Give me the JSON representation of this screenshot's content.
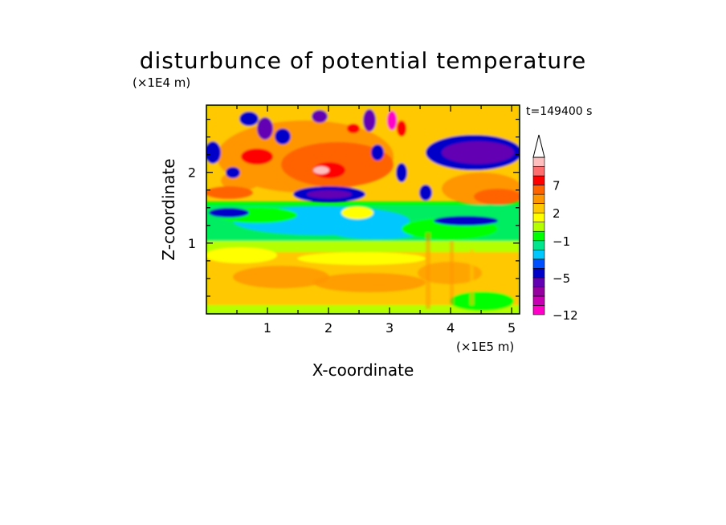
{
  "chart_data": {
    "type": "heatmap",
    "title": "disturbunce of potential temperature",
    "xlabel": "X-coordinate",
    "ylabel": "Z-coordinate",
    "x_unit": "(×1E5 m)",
    "y_unit": "(×1E4 m)",
    "time_label": "t=149400 s",
    "xlim": [
      0,
      5.13
    ],
    "ylim": [
      0,
      2.95
    ],
    "x_ticks": [
      "1",
      "2",
      "3",
      "4",
      "5"
    ],
    "y_ticks": [
      "1",
      "2"
    ],
    "colorbar": {
      "tick_labels": [
        "7",
        "2",
        "−1",
        "−5",
        "−12"
      ],
      "colors": [
        "#ff00c8",
        "#c800b4",
        "#9600a0",
        "#6400b4",
        "#0000c8",
        "#0050ff",
        "#00c8ff",
        "#00e68c",
        "#00ff00",
        "#b4ff00",
        "#ffff00",
        "#ffc800",
        "#ff9600",
        "#ff6400",
        "#ff0000",
        "#ff6e6e",
        "#ffbebe"
      ],
      "extend_top": true
    },
    "regions": [
      {
        "x": [
          0.0,
          5.13
        ],
        "z": [
          0.0,
          0.9
        ],
        "value": "warm-lower",
        "color": "#ffc800"
      },
      {
        "x": [
          0.0,
          3.6
        ],
        "z": [
          0.9,
          1.6
        ],
        "value": "neutral",
        "color": "#00ff00"
      },
      {
        "x": [
          0.9,
          2.9
        ],
        "z": [
          1.0,
          1.5
        ],
        "value": "cool",
        "color": "#00c8ff"
      },
      {
        "x": [
          0.3,
          3.3
        ],
        "z": [
          1.9,
          2.6
        ],
        "value": "warm-upper",
        "color": "#ff6400"
      },
      {
        "x": [
          1.5,
          2.5
        ],
        "z": [
          1.6,
          1.8
        ],
        "value": "cold-band",
        "color": "#0000c8"
      },
      {
        "x": [
          3.6,
          5.13
        ],
        "z": [
          2.1,
          2.6
        ],
        "value": "cold-upper",
        "color": "#6400b4"
      },
      {
        "x": [
          3.4,
          4.9
        ],
        "z": [
          1.3,
          1.45
        ],
        "value": "cold-band-right",
        "color": "#0000c8"
      }
    ]
  }
}
